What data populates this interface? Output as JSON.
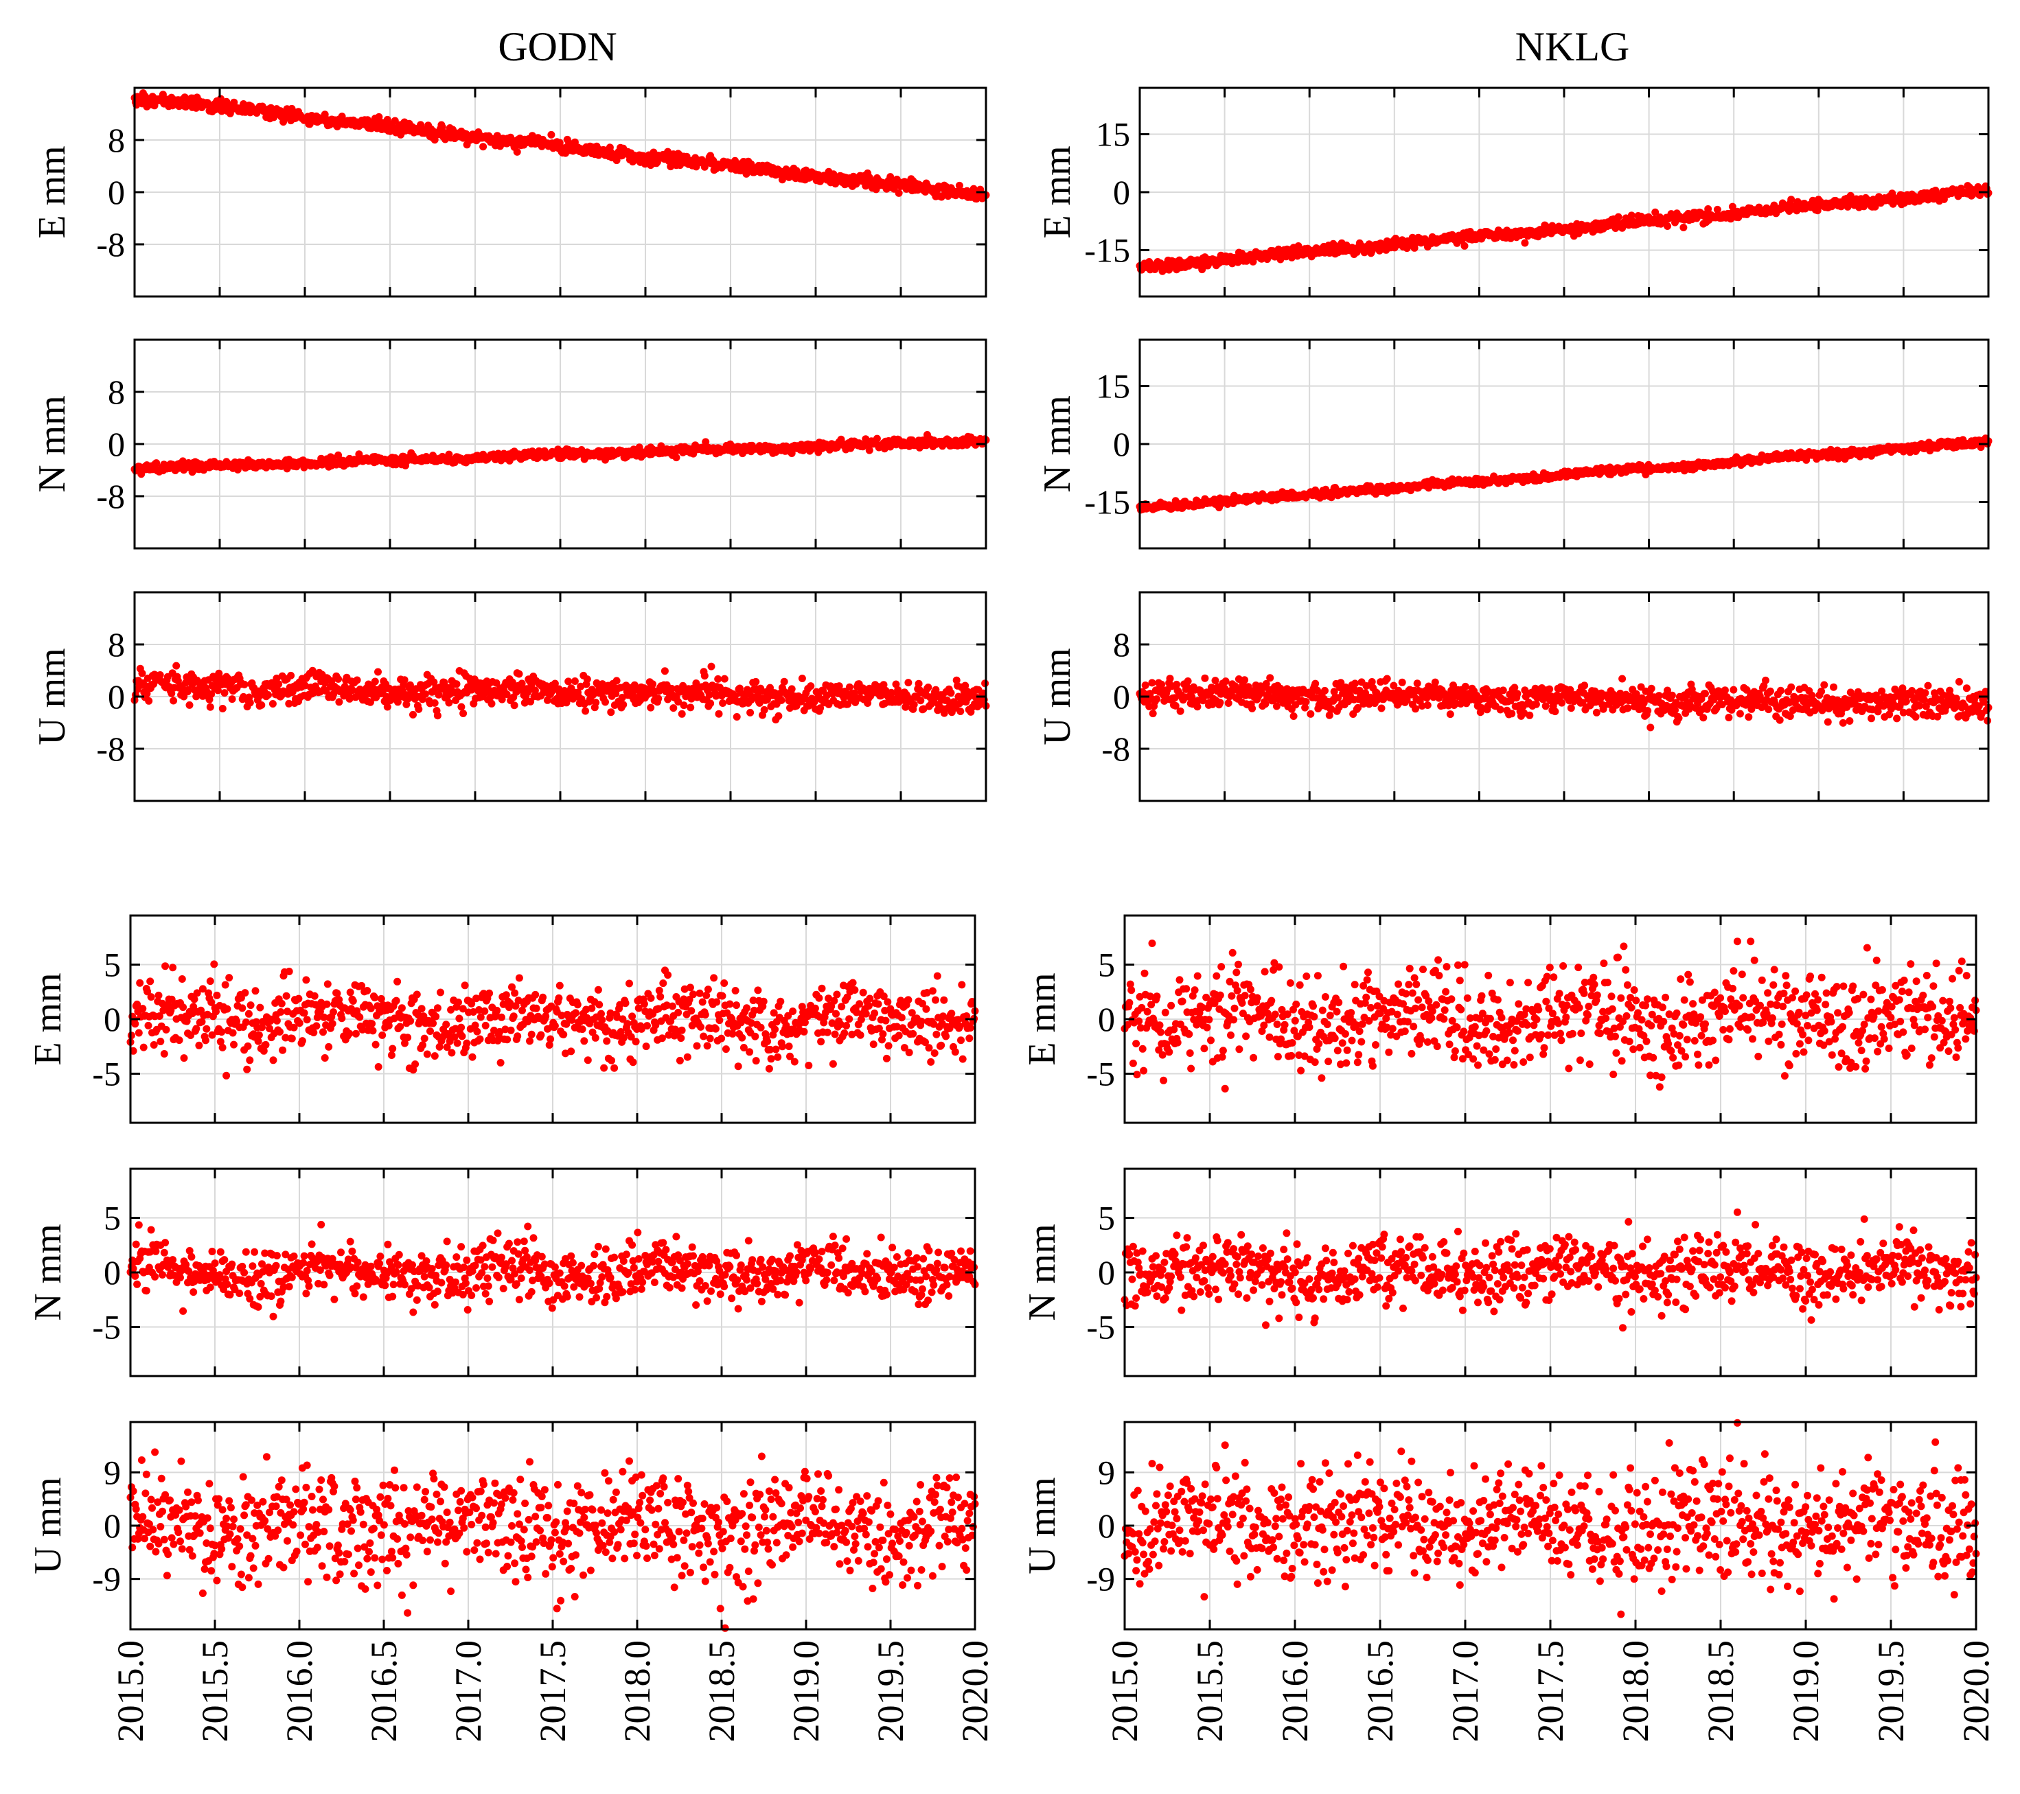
{
  "figure": {
    "columns": [
      {
        "station": "GODN"
      },
      {
        "station": "NKLG"
      }
    ]
  },
  "chart_data": [
    {
      "type": "scatter",
      "station": "GODN",
      "group": "raw",
      "ylabel": "E mm",
      "xlim": [
        2015.0,
        2020.0
      ],
      "ylim": [
        -16,
        16
      ],
      "yticks": [
        "8",
        "0",
        "-8"
      ],
      "ytick_values": [
        8,
        0,
        -8
      ],
      "xticks": [
        "2015.0",
        "2015.5",
        "2016.0",
        "2016.5",
        "2017.0",
        "2017.5",
        "2018.0",
        "2018.5",
        "2019.0",
        "2019.5",
        "2020.0"
      ],
      "grid": true,
      "color": "#ff0000",
      "trend": {
        "start": 14.5,
        "end": -0.5
      },
      "noise": 0.5,
      "seed": 11
    },
    {
      "type": "scatter",
      "station": "GODN",
      "group": "raw",
      "ylabel": "N mm",
      "xlim": [
        2015.0,
        2020.0
      ],
      "ylim": [
        -16,
        16
      ],
      "yticks": [
        "8",
        "0",
        "-8"
      ],
      "ytick_values": [
        8,
        0,
        -8
      ],
      "xticks": [
        "2015.0",
        "2015.5",
        "2016.0",
        "2016.5",
        "2017.0",
        "2017.5",
        "2018.0",
        "2018.5",
        "2019.0",
        "2019.5",
        "2020.0"
      ],
      "grid": true,
      "color": "#ff0000",
      "trend": {
        "start": -3.8,
        "end": 0.5
      },
      "noise": 0.35,
      "seed": 12
    },
    {
      "type": "scatter",
      "station": "GODN",
      "group": "raw",
      "ylabel": "U mm",
      "xlim": [
        2015.0,
        2020.0
      ],
      "ylim": [
        -16,
        16
      ],
      "yticks": [
        "8",
        "0",
        "-8"
      ],
      "ytick_values": [
        8,
        0,
        -8
      ],
      "xticks": [
        "2015.0",
        "2015.5",
        "2016.0",
        "2016.5",
        "2017.0",
        "2017.5",
        "2018.0",
        "2018.5",
        "2019.0",
        "2019.5",
        "2020.0"
      ],
      "grid": true,
      "color": "#ff0000",
      "trend": {
        "start": 1.5,
        "end": -0.3
      },
      "noise": 1.2,
      "seed": 13
    },
    {
      "type": "scatter",
      "station": "NKLG",
      "group": "raw",
      "ylabel": "E mm",
      "xlim": [
        2015.0,
        2020.0
      ],
      "ylim": [
        -27,
        27
      ],
      "yticks": [
        "15",
        "0",
        "-15"
      ],
      "ytick_values": [
        15,
        0,
        -15
      ],
      "xticks": [
        "2015.0",
        "2015.5",
        "2016.0",
        "2016.5",
        "2017.0",
        "2017.5",
        "2018.0",
        "2018.5",
        "2019.0",
        "2019.5",
        "2020.0"
      ],
      "grid": true,
      "color": "#ff0000",
      "trend": {
        "start": -19.5,
        "end": 0.5
      },
      "noise": 0.7,
      "seed": 21
    },
    {
      "type": "scatter",
      "station": "NKLG",
      "group": "raw",
      "ylabel": "N mm",
      "xlim": [
        2015.0,
        2020.0
      ],
      "ylim": [
        -27,
        27
      ],
      "yticks": [
        "15",
        "0",
        "-15"
      ],
      "ytick_values": [
        15,
        0,
        -15
      ],
      "xticks": [
        "2015.0",
        "2015.5",
        "2016.0",
        "2016.5",
        "2017.0",
        "2017.5",
        "2018.0",
        "2018.5",
        "2019.0",
        "2019.5",
        "2020.0"
      ],
      "grid": true,
      "color": "#ff0000",
      "trend": {
        "start": -16.5,
        "end": 0.5
      },
      "noise": 0.5,
      "seed": 22
    },
    {
      "type": "scatter",
      "station": "NKLG",
      "group": "raw",
      "ylabel": "U mm",
      "xlim": [
        2015.0,
        2020.0
      ],
      "ylim": [
        -16,
        16
      ],
      "yticks": [
        "8",
        "0",
        "-8"
      ],
      "ytick_values": [
        8,
        0,
        -8
      ],
      "xticks": [
        "2015.0",
        "2015.5",
        "2016.0",
        "2016.5",
        "2017.0",
        "2017.5",
        "2018.0",
        "2018.5",
        "2019.0",
        "2019.5",
        "2020.0"
      ],
      "grid": true,
      "color": "#ff0000",
      "trend": {
        "start": 0.5,
        "end": -1.2
      },
      "noise": 1.2,
      "seed": 23
    },
    {
      "type": "scatter",
      "station": "GODN",
      "group": "residual",
      "ylabel": "E mm",
      "xlim": [
        2015.0,
        2020.0
      ],
      "ylim": [
        -9.5,
        9.5
      ],
      "yticks": [
        "5",
        "0",
        "-5"
      ],
      "ytick_values": [
        5,
        0,
        -5
      ],
      "xticks": [
        "2015.0",
        "2015.5",
        "2016.0",
        "2016.5",
        "2017.0",
        "2017.5",
        "2018.0",
        "2018.5",
        "2019.0",
        "2019.5",
        "2020.0"
      ],
      "grid": true,
      "color": "#ff0000",
      "trend": {
        "start": 0,
        "end": 0
      },
      "noise": 1.7,
      "seed": 31
    },
    {
      "type": "scatter",
      "station": "GODN",
      "group": "residual",
      "ylabel": "N mm",
      "xlim": [
        2015.0,
        2020.0
      ],
      "ylim": [
        -9.5,
        9.5
      ],
      "yticks": [
        "5",
        "0",
        "-5"
      ],
      "ytick_values": [
        5,
        0,
        -5
      ],
      "xticks": [
        "2015.0",
        "2015.5",
        "2016.0",
        "2016.5",
        "2017.0",
        "2017.5",
        "2018.0",
        "2018.5",
        "2019.0",
        "2019.5",
        "2020.0"
      ],
      "grid": true,
      "color": "#ff0000",
      "trend": {
        "start": 0,
        "end": 0
      },
      "noise": 1.3,
      "seed": 32
    },
    {
      "type": "scatter",
      "station": "GODN",
      "group": "residual",
      "ylabel": "U mm",
      "xlim": [
        2015.0,
        2020.0
      ],
      "ylim": [
        -17.5,
        17.5
      ],
      "yticks": [
        "9",
        "0",
        "-9"
      ],
      "ytick_values": [
        9,
        0,
        -9
      ],
      "xticks": [
        "2015.0",
        "2015.5",
        "2016.0",
        "2016.5",
        "2017.0",
        "2017.5",
        "2018.0",
        "2018.5",
        "2019.0",
        "2019.5",
        "2020.0"
      ],
      "grid": true,
      "color": "#ff0000",
      "trend": {
        "start": 0,
        "end": 0
      },
      "noise": 4.5,
      "seed": 33
    },
    {
      "type": "scatter",
      "station": "NKLG",
      "group": "residual",
      "ylabel": "E mm",
      "xlim": [
        2015.0,
        2020.0
      ],
      "ylim": [
        -9.5,
        9.5
      ],
      "yticks": [
        "5",
        "0",
        "-5"
      ],
      "ytick_values": [
        5,
        0,
        -5
      ],
      "xticks": [
        "2015.0",
        "2015.5",
        "2016.0",
        "2016.5",
        "2017.0",
        "2017.5",
        "2018.0",
        "2018.5",
        "2019.0",
        "2019.5",
        "2020.0"
      ],
      "grid": true,
      "color": "#ff0000",
      "trend": {
        "start": 0,
        "end": 0
      },
      "noise": 2.2,
      "seed": 41
    },
    {
      "type": "scatter",
      "station": "NKLG",
      "group": "residual",
      "ylabel": "N mm",
      "xlim": [
        2015.0,
        2020.0
      ],
      "ylim": [
        -9.5,
        9.5
      ],
      "yticks": [
        "5",
        "0",
        "-5"
      ],
      "ytick_values": [
        5,
        0,
        -5
      ],
      "xticks": [
        "2015.0",
        "2015.5",
        "2016.0",
        "2016.5",
        "2017.0",
        "2017.5",
        "2018.0",
        "2018.5",
        "2019.0",
        "2019.5",
        "2020.0"
      ],
      "grid": true,
      "color": "#ff0000",
      "trend": {
        "start": 0,
        "end": 0
      },
      "noise": 1.5,
      "seed": 42
    },
    {
      "type": "scatter",
      "station": "NKLG",
      "group": "residual",
      "ylabel": "U mm",
      "xlim": [
        2015.0,
        2020.0
      ],
      "ylim": [
        -17.5,
        17.5
      ],
      "yticks": [
        "9",
        "0",
        "-9"
      ],
      "ytick_values": [
        9,
        0,
        -9
      ],
      "xticks": [
        "2015.0",
        "2015.5",
        "2016.0",
        "2016.5",
        "2017.0",
        "2017.5",
        "2018.0",
        "2018.5",
        "2019.0",
        "2019.5",
        "2020.0"
      ],
      "grid": true,
      "color": "#ff0000",
      "trend": {
        "start": 0,
        "end": 0
      },
      "noise": 4.5,
      "seed": 43
    }
  ]
}
